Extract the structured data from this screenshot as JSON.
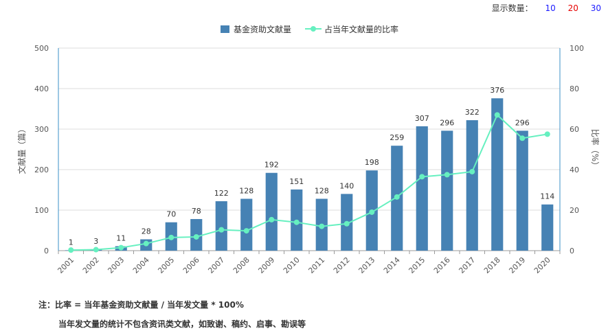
{
  "display_count": {
    "label": "显示数量：",
    "options": [
      {
        "text": "10",
        "color": "#1a1aff"
      },
      {
        "text": "20",
        "color": "#e60000"
      },
      {
        "text": "30",
        "color": "#1a1aff"
      }
    ]
  },
  "notes": {
    "line1": "注：比率 = 当年基金资助文献量 / 当年发文量 * 100%",
    "line2": "当年发文量的统计不包含资讯类文献，如致谢、稿约、启事、勘误等"
  },
  "chart_data": {
    "type": "bar",
    "categories": [
      "2001",
      "2002",
      "2003",
      "2004",
      "2005",
      "2006",
      "2007",
      "2008",
      "2009",
      "2010",
      "2011",
      "2012",
      "2013",
      "2014",
      "2015",
      "2016",
      "2017",
      "2018",
      "2019",
      "2020"
    ],
    "series": [
      {
        "name": "基金资助文献量",
        "type": "bar",
        "axis": "left",
        "color": "#4682b4",
        "values": [
          1,
          3,
          11,
          28,
          70,
          78,
          122,
          128,
          192,
          151,
          128,
          140,
          198,
          259,
          307,
          296,
          322,
          376,
          296,
          114
        ]
      },
      {
        "name": "占当年文献量的比率",
        "type": "line",
        "axis": "right",
        "color": "#66f0c0",
        "values": [
          0.3,
          0.5,
          1.5,
          3.5,
          6.5,
          6.8,
          10.3,
          9.8,
          15.3,
          14.0,
          12.0,
          13.3,
          19.0,
          26.5,
          36.5,
          37.5,
          39.0,
          67.0,
          55.5,
          57.5
        ]
      }
    ],
    "ylabel_left": "文献量（篇）",
    "ylabel_right": "比率（%）",
    "ylim_left": [
      0,
      500
    ],
    "ylim_right": [
      0,
      100
    ],
    "yticks_left": [
      0,
      100,
      200,
      300,
      400,
      500
    ],
    "yticks_right": [
      0,
      20,
      40,
      60,
      80,
      100
    ],
    "grid": true,
    "legend_position": "top-center"
  }
}
